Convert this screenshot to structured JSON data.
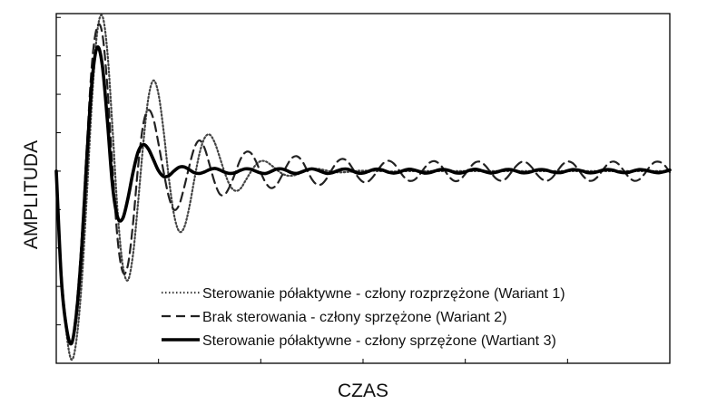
{
  "chart_data": {
    "type": "line",
    "xlabel": "CZAS",
    "ylabel": "AMPLITUDA",
    "xlim": [
      0,
      30
    ],
    "ylim": [
      -5,
      4.1
    ],
    "x_ticks": [
      0,
      5,
      10,
      15,
      20,
      25,
      30
    ],
    "y_ticks": [
      -4,
      -3,
      -2,
      -1,
      0,
      1,
      2,
      3,
      4
    ],
    "tick_labels_visible": false,
    "grid": false,
    "legend_position": "bottom-right",
    "series": [
      {
        "name": "Sterowanie półaktywne - człony rozprzężone (Wariant 1)",
        "line_style": "dotted",
        "color": "#444444",
        "x": [
          0,
          0.25,
          0.5,
          0.75,
          1.0,
          1.25,
          1.5,
          1.75,
          2.0,
          2.25,
          2.5,
          2.75,
          3.0,
          3.25,
          3.5,
          3.75,
          4.0,
          4.25,
          4.5,
          4.75,
          5.0,
          5.25,
          5.5,
          5.75,
          6.0,
          6.25,
          6.5,
          6.75,
          7.0,
          7.25,
          7.5,
          7.75,
          8.0,
          8.25,
          8.5,
          8.75,
          9.0,
          9.25,
          9.5,
          9.75,
          10.0,
          10.25,
          10.5,
          10.75,
          11.0,
          11.25,
          11.5,
          11.75,
          12.0,
          12.25,
          12.5,
          12.75,
          13.0,
          13.25,
          13.5,
          13.75,
          14.0,
          14.25,
          14.5,
          14.75,
          15.0,
          15.25,
          15.5,
          15.75,
          16.0,
          16.25,
          16.5,
          16.75,
          17.0,
          17.25,
          17.5,
          17.75,
          18.0,
          18.25,
          18.5,
          18.75,
          19.0,
          19.25,
          19.5,
          19.75,
          20.0,
          20.25,
          20.5,
          20.75,
          21.0,
          21.25,
          21.5,
          21.75,
          22.0,
          22.25,
          22.5,
          22.75,
          23.0,
          23.25,
          23.5,
          23.75,
          24.0,
          24.25,
          24.5,
          24.75,
          25.0,
          25.25,
          25.5,
          25.75,
          26.0,
          26.25,
          26.5,
          26.75,
          27.0,
          27.25,
          27.5,
          27.75,
          28.0,
          28.25,
          28.5,
          28.75,
          29.0,
          29.25,
          29.5,
          29.75,
          30.0
        ],
        "y": [
          0.0,
          -2.67,
          -4.22,
          -4.91,
          -4.34,
          -2.85,
          -0.58,
          1.88,
          3.61,
          4.04,
          3.1,
          1.11,
          -1.06,
          -2.45,
          -2.84,
          -2.18,
          -0.82,
          0.69,
          1.89,
          2.36,
          2.0,
          1.04,
          -0.16,
          -1.11,
          -1.56,
          -1.47,
          -0.95,
          -0.22,
          0.45,
          0.86,
          0.95,
          0.74,
          0.35,
          -0.06,
          -0.38,
          -0.51,
          -0.46,
          -0.25,
          -0.03,
          0.16,
          0.26,
          0.25,
          0.16,
          0.05,
          -0.05,
          -0.11,
          -0.12,
          -0.09,
          -0.03,
          0.02,
          0.05,
          0.06,
          0.04,
          0.01,
          -0.01,
          -0.03,
          -0.03,
          -0.02,
          -0.01,
          0.01,
          0.01,
          0.01,
          0.01,
          0.0,
          -0.0,
          -0.01,
          -0.01,
          -0.0,
          0.0,
          0.0,
          0.0,
          0.0,
          0.0,
          0.0,
          -0.0,
          -0.0,
          -0.0,
          -0.0,
          0.0,
          0.0,
          0.0,
          0.0,
          0.0,
          -0.0,
          -0.0,
          -0.0,
          -0.0,
          0.0,
          0.0,
          0.0,
          0.0,
          -0.0,
          -0.0,
          -0.0,
          -0.0,
          0.0,
          0.0,
          0.0,
          0.0,
          0.0,
          -0.0,
          -0.0,
          -0.0,
          0.0,
          0.0,
          0.0,
          0.0,
          -0.0,
          -0.0,
          -0.0,
          0.0,
          0.0,
          0.0,
          0.0,
          0.0,
          -0.0,
          -0.0,
          0.0,
          0.0,
          0.0,
          0.0
        ]
      },
      {
        "name": "Brak sterowania - człony sprzężone (Wariant 2)",
        "line_style": "dashed",
        "color": "#222222",
        "x": [
          0,
          0.25,
          0.5,
          0.75,
          1.0,
          1.25,
          1.5,
          1.75,
          2.0,
          2.25,
          2.5,
          2.75,
          3.0,
          3.25,
          3.5,
          3.75,
          4.0,
          4.25,
          4.5,
          4.75,
          5.0,
          5.25,
          5.5,
          5.75,
          6.0,
          6.25,
          6.5,
          6.75,
          7.0,
          7.25,
          7.5,
          7.75,
          8.0,
          8.25,
          8.5,
          8.75,
          9.0,
          9.25,
          9.5,
          9.75,
          10.0,
          10.25,
          10.5,
          10.75,
          11.0,
          11.25,
          11.5,
          11.75,
          12.0,
          12.25,
          12.5,
          12.75,
          13.0,
          13.25,
          13.5,
          13.75,
          14.0,
          14.25,
          14.5,
          14.75,
          15.0,
          15.25,
          15.5,
          15.75,
          16.0,
          16.25,
          16.5,
          16.75,
          17.0,
          17.25,
          17.5,
          17.75,
          18.0,
          18.25,
          18.5,
          18.75,
          19.0,
          19.25,
          19.5,
          19.75,
          20.0,
          20.25,
          20.5,
          20.75,
          21.0,
          21.25,
          21.5,
          21.75,
          22.0,
          22.25,
          22.5,
          22.75,
          23.0,
          23.25,
          23.5,
          23.75,
          24.0,
          24.25,
          24.5,
          24.75,
          25.0,
          25.25,
          25.5,
          25.75,
          26.0,
          26.25,
          26.5,
          26.75,
          27.0,
          27.25,
          27.5,
          27.75,
          28.0,
          28.25,
          28.5,
          28.75,
          29.0,
          29.25,
          29.5,
          29.75,
          30.0
        ],
        "y": [
          0.0,
          -2.64,
          -4.02,
          -4.45,
          -3.47,
          -1.69,
          0.7,
          2.83,
          3.76,
          3.58,
          2.2,
          0.09,
          -1.78,
          -2.62,
          -2.45,
          -1.38,
          0.11,
          1.21,
          1.59,
          1.36,
          0.71,
          -0.02,
          -0.66,
          -1.0,
          -0.89,
          -0.43,
          0.12,
          0.6,
          0.8,
          0.6,
          0.16,
          -0.3,
          -0.6,
          -0.6,
          -0.38,
          -0.05,
          0.3,
          0.49,
          0.48,
          0.27,
          -0.04,
          -0.31,
          -0.44,
          -0.37,
          -0.15,
          0.12,
          0.33,
          0.39,
          0.28,
          0.04,
          -0.21,
          -0.35,
          -0.33,
          -0.17,
          0.06,
          0.25,
          0.32,
          0.25,
          0.06,
          -0.15,
          -0.28,
          -0.27,
          -0.14,
          0.05,
          0.21,
          0.27,
          0.2,
          0.03,
          -0.15,
          -0.25,
          -0.23,
          -0.1,
          0.08,
          0.22,
          0.26,
          0.18,
          0.01,
          -0.17,
          -0.26,
          -0.22,
          -0.07,
          0.11,
          0.23,
          0.24,
          0.13,
          -0.04,
          -0.19,
          -0.25,
          -0.19,
          -0.03,
          0.14,
          0.24,
          0.22,
          0.1,
          -0.08,
          -0.21,
          -0.25,
          -0.17,
          0.0,
          0.17,
          0.25,
          0.21,
          0.06,
          -0.12,
          -0.24,
          -0.24,
          -0.13,
          0.05,
          0.2,
          0.25,
          0.18,
          0.01,
          -0.16,
          -0.25,
          -0.22,
          -0.08,
          0.1,
          0.23,
          0.24,
          0.15,
          -0.03
        ]
      },
      {
        "name": "Sterowanie półaktywne - człony sprzężone (Wartiant 3)",
        "line_style": "solid",
        "color": "#000000",
        "x": [
          0,
          0.25,
          0.5,
          0.75,
          1.0,
          1.25,
          1.5,
          1.75,
          2.0,
          2.25,
          2.5,
          2.75,
          3.0,
          3.25,
          3.5,
          3.75,
          4.0,
          4.25,
          4.5,
          4.75,
          5.0,
          5.25,
          5.5,
          5.75,
          6.0,
          6.25,
          6.5,
          6.75,
          7.0,
          7.25,
          7.5,
          7.75,
          8.0,
          8.25,
          8.5,
          8.75,
          9.0,
          9.25,
          9.5,
          9.75,
          10.0,
          10.25,
          10.5,
          10.75,
          11.0,
          11.25,
          11.5,
          11.75,
          12.0,
          12.25,
          12.5,
          12.75,
          13.0,
          13.25,
          13.5,
          13.75,
          14.0,
          14.25,
          14.5,
          14.75,
          15.0,
          15.25,
          15.5,
          15.75,
          16.0,
          16.25,
          16.5,
          16.75,
          17.0,
          17.25,
          17.5,
          17.75,
          18.0,
          18.25,
          18.5,
          18.75,
          19.0,
          19.25,
          19.5,
          19.75,
          20.0,
          20.25,
          20.5,
          20.75,
          21.0,
          21.25,
          21.5,
          21.75,
          22.0,
          22.25,
          22.5,
          22.75,
          23.0,
          23.25,
          23.5,
          23.75,
          24.0,
          24.25,
          24.5,
          24.75,
          25.0,
          25.25,
          25.5,
          25.75,
          26.0,
          26.25,
          26.5,
          26.75,
          27.0,
          27.25,
          27.5,
          27.75,
          28.0,
          28.25,
          28.5,
          28.75,
          29.0,
          29.25,
          29.5,
          29.75,
          30.0
        ],
        "y": [
          0.0,
          -2.82,
          -4.08,
          -4.48,
          -3.64,
          -1.95,
          0.39,
          2.35,
          3.22,
          2.76,
          1.31,
          -0.37,
          -1.2,
          -1.23,
          -0.72,
          -0.04,
          0.5,
          0.69,
          0.58,
          0.3,
          0.01,
          -0.14,
          -0.12,
          -0.0,
          0.1,
          0.11,
          0.04,
          -0.04,
          -0.06,
          -0.02,
          0.04,
          0.07,
          0.03,
          -0.03,
          -0.06,
          -0.04,
          0.02,
          0.06,
          0.05,
          -0.0,
          -0.05,
          -0.06,
          -0.01,
          0.05,
          0.06,
          0.02,
          -0.04,
          -0.06,
          -0.02,
          0.03,
          0.06,
          0.03,
          -0.02,
          -0.06,
          -0.04,
          0.01,
          0.05,
          0.05,
          0.0,
          -0.05,
          -0.05,
          -0.01,
          0.04,
          0.05,
          0.02,
          -0.03,
          -0.05,
          -0.03,
          0.02,
          0.05,
          0.03,
          -0.01,
          -0.05,
          -0.04,
          0.0,
          0.04,
          0.04,
          0.01,
          -0.04,
          -0.05,
          -0.02,
          0.03,
          0.05,
          0.02,
          -0.02,
          -0.05,
          -0.03,
          0.01,
          0.04,
          0.04,
          -0.0,
          -0.04,
          -0.04,
          -0.01,
          0.03,
          0.04,
          0.02,
          -0.02,
          -0.04,
          -0.03,
          0.01,
          0.04,
          0.03,
          -0.0,
          -0.04,
          -0.04,
          -0.01,
          0.03,
          0.04,
          0.02,
          -0.02,
          -0.04,
          -0.03,
          0.01,
          0.04,
          0.03,
          -0.0,
          -0.03,
          -0.04,
          -0.01,
          0.03
        ]
      }
    ]
  }
}
